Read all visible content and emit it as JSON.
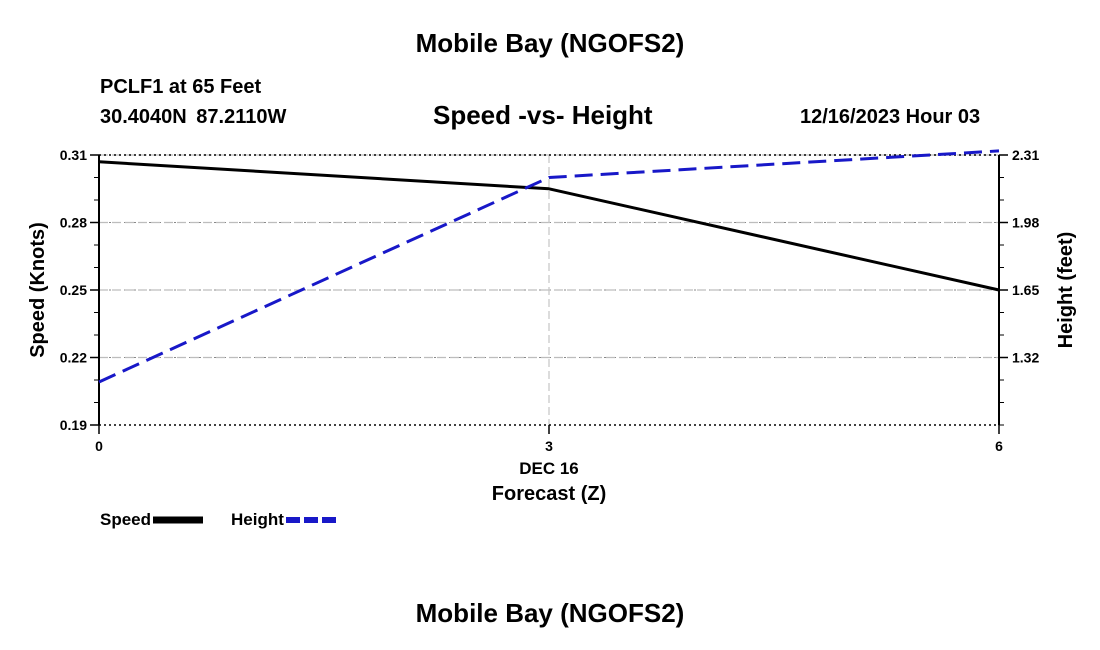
{
  "header": {
    "title": "Mobile Bay (NGOFS2)",
    "station": "PCLF1 at 65 Feet",
    "coordinates": "30.4040N  87.2110W",
    "date_label": "12/16/2023 Hour 03"
  },
  "footer": {
    "title": "Mobile Bay (NGOFS2)"
  },
  "chart_data": {
    "type": "line",
    "title": "Speed -vs- Height",
    "xlabel": "Forecast (Z)",
    "x_sublabel": "DEC 16",
    "x": [
      0,
      3,
      6
    ],
    "xlim": [
      0,
      6
    ],
    "x_ticks": [
      "0",
      "3",
      "6"
    ],
    "ylabel_left": "Speed (Knots)",
    "ylim_left": [
      0.19,
      0.31
    ],
    "y_ticks_left": [
      "0.19",
      "0.22",
      "0.25",
      "0.28",
      "0.31"
    ],
    "ylabel_right": "Height (feet)",
    "ylim_right": [
      0.99,
      2.31
    ],
    "y_ticks_right": [
      "1.32",
      "1.65",
      "1.98",
      "2.31"
    ],
    "grid": true,
    "legend_position": "bottom-left",
    "series": [
      {
        "name": "Speed",
        "axis": "left",
        "values": [
          0.307,
          0.295,
          0.25
        ],
        "color": "#000000",
        "style": "solid"
      },
      {
        "name": "Height",
        "axis": "right",
        "values": [
          1.2,
          2.2,
          2.33
        ],
        "color": "#1818c8",
        "style": "dashed"
      }
    ]
  }
}
